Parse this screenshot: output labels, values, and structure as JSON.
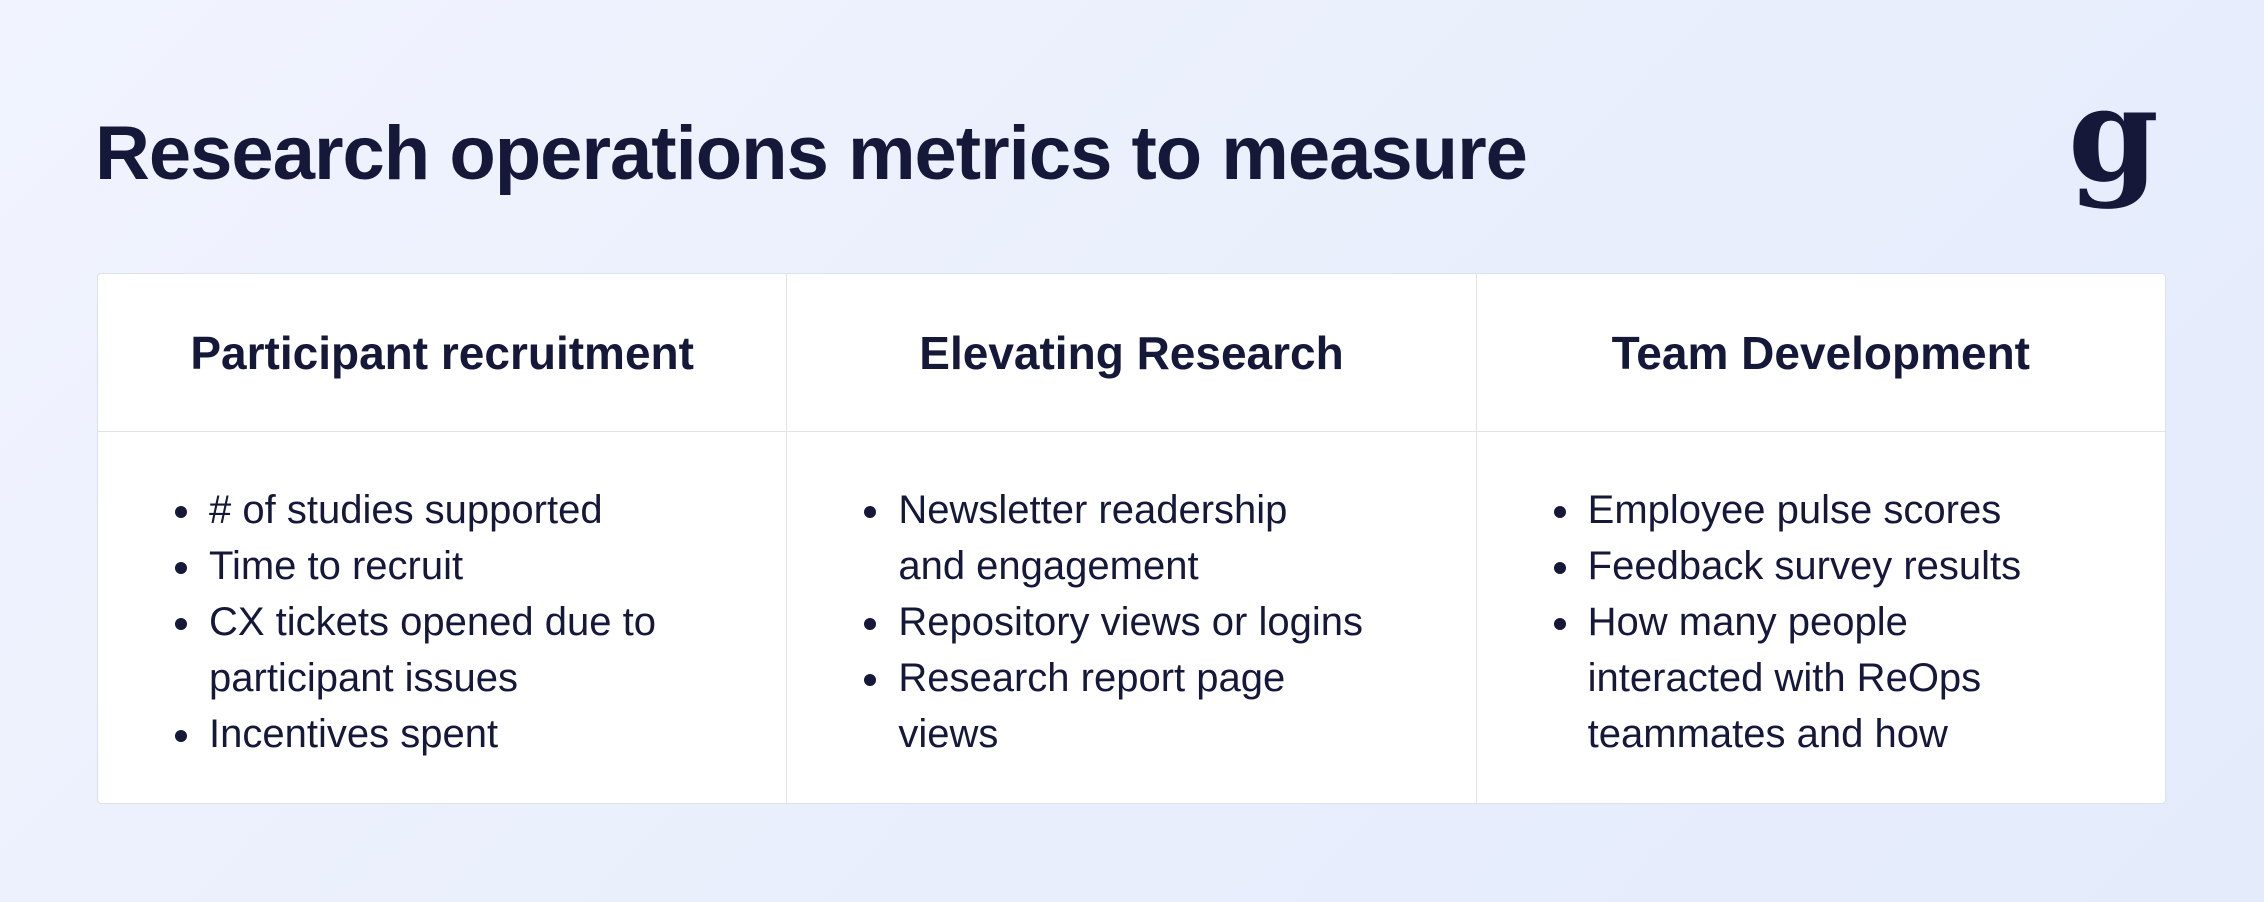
{
  "header": {
    "title": "Research operations metrics to measure",
    "logo": "g"
  },
  "table": {
    "columns": [
      {
        "heading": "Participant recruitment",
        "items": [
          [
            "# of studies supported"
          ],
          [
            "Time to recruit"
          ],
          [
            "CX tickets opened due to",
            "participant issues"
          ],
          [
            "Incentives spent"
          ]
        ]
      },
      {
        "heading": "Elevating Research",
        "items": [
          [
            "Newsletter readership",
            "and engagement"
          ],
          [
            "Repository views or logins"
          ],
          [
            "Research report page",
            "views"
          ]
        ]
      },
      {
        "heading": "Team Development",
        "items": [
          [
            "Employee pulse scores"
          ],
          [
            "Feedback survey results"
          ],
          [
            "How many people",
            "interacted with ReOps",
            "teammates and how"
          ]
        ]
      }
    ]
  }
}
